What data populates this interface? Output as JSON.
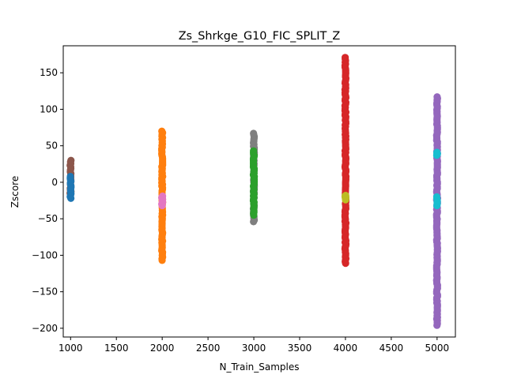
{
  "chart_data": {
    "type": "scatter",
    "title": "Zs_Shrkge_G10_FIC_SPLIT_Z",
    "xlabel": "N_Train_Samples",
    "ylabel": "Zscore",
    "xlim": [
      920,
      5200
    ],
    "ylim": [
      -212,
      187
    ],
    "xticks": [
      1000,
      1500,
      2000,
      2500,
      3000,
      3500,
      4000,
      4500,
      5000
    ],
    "yticks": [
      -200,
      -150,
      -100,
      -50,
      0,
      50,
      100,
      150
    ],
    "grid": false,
    "legend": "none",
    "series": [
      {
        "color": "#8c564b",
        "x": 1000,
        "min": -15,
        "max": 30
      },
      {
        "color": "#1f77b4",
        "x": 1000,
        "min": -22,
        "max": 8
      },
      {
        "color": "#ff7f0e",
        "x": 2000,
        "min": -107,
        "max": 70
      },
      {
        "color": "#e377c2",
        "x": 2000,
        "min": -32,
        "max": -19
      },
      {
        "color": "#7f7f7f",
        "x": 3000,
        "min": -54,
        "max": 67
      },
      {
        "color": "#2ca02c",
        "x": 3000,
        "min": -45,
        "max": 43
      },
      {
        "color": "#d62728",
        "x": 4000,
        "min": -111,
        "max": 171
      },
      {
        "color": "#bcbd22",
        "x": 4000,
        "min": -24,
        "max": -18
      },
      {
        "color": "#9467bd",
        "x": 5000,
        "min": -196,
        "max": 117
      },
      {
        "color": "#17becf",
        "x": 5000,
        "min": -32,
        "max": -20
      },
      {
        "color": "#17becf",
        "x": 5000,
        "min": 37,
        "max": 41
      }
    ]
  }
}
